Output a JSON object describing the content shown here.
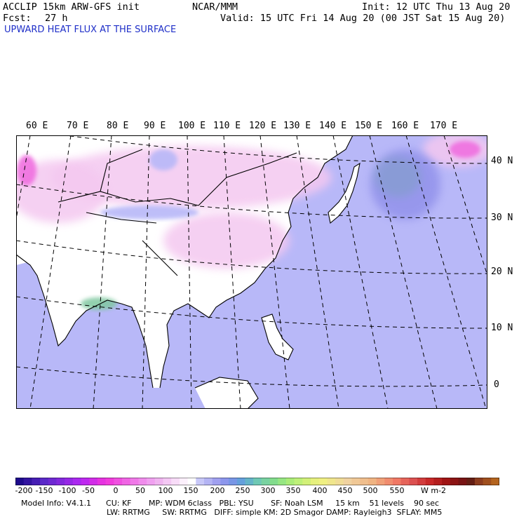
{
  "header": {
    "model": "ACCLIP 15km ARW-GFS init",
    "fcst_label": "Fcst:",
    "fcst_value": "27 h",
    "center": "NCAR/MMM",
    "init": "Init: 12 UTC Thu 13 Aug 20",
    "valid": "Valid: 15 UTC Fri 14 Aug 20 (00 JST Sat 15 Aug 20)",
    "field_title": "UPWARD HEAT FLUX AT THE SURFACE"
  },
  "map": {
    "lon_labels": [
      "60 E",
      "70 E",
      "80 E",
      "90 E",
      "100 E",
      "110 E",
      "120 E",
      "130 E",
      "140 E",
      "150 E",
      "160 E",
      "170 E"
    ],
    "lat_labels": [
      "40 N",
      "30 N",
      "20 N",
      "10 N",
      "0"
    ],
    "colors": {
      "ocean_low": "#b8b8f8",
      "land_neutral": "#ffffff",
      "land_negative": "#f4c8f0",
      "strong_negative": "#f070e0",
      "positive_patch": "#80c8a0",
      "coastline": "#000000"
    }
  },
  "colorbar": {
    "labels": [
      "-200",
      "-150",
      "-100",
      "-50",
      "0",
      "50",
      "100",
      "150",
      "200",
      "250",
      "300",
      "350",
      "400",
      "450",
      "500",
      "550"
    ],
    "unit": "W m-2",
    "colors": [
      "#1e0a8c",
      "#3214a0",
      "#461eb4",
      "#5a28c8",
      "#6e28d2",
      "#8228dc",
      "#9628e6",
      "#aa28f0",
      "#be28f0",
      "#d22ce8",
      "#e632e0",
      "#f03cdc",
      "#f050e0",
      "#f064e4",
      "#f078e8",
      "#f08cec",
      "#f0a0f0",
      "#f0b4f0",
      "#f4c8f4",
      "#f8dcf8",
      "#fcf0fc",
      "#ffffff",
      "#c8c8f8",
      "#b4b4f4",
      "#a0a0f0",
      "#8c96ec",
      "#7896e6",
      "#64a0dc",
      "#64b4c8",
      "#6ec8b4",
      "#78d2a0",
      "#82dc8c",
      "#96e682",
      "#aaec78",
      "#bef078",
      "#d2f078",
      "#e6f07d",
      "#f0f082",
      "#f0e68c",
      "#f0dc96",
      "#f0d2a0",
      "#f0c896",
      "#f0be8c",
      "#f0b482",
      "#f0a078",
      "#f08c6e",
      "#f07864",
      "#e6645a",
      "#dc5050",
      "#d23c3c",
      "#c82828",
      "#b41e1e",
      "#a01414",
      "#8c1414",
      "#781414",
      "#641e14",
      "#8c3c1e",
      "#a0501e",
      "#b4641e"
    ]
  },
  "footer": {
    "line1": "Model Info: V4.1.1      CU: KF       MP: WDM 6class   PBL: YSU       SF: Noah LSM     15 km    51 levels    90 sec",
    "line2": "LW: RRTMG     SW: RRTMG   DIFF: simple KM: 2D Smagor DAMP: Rayleigh3  SFLAY: MM5"
  }
}
